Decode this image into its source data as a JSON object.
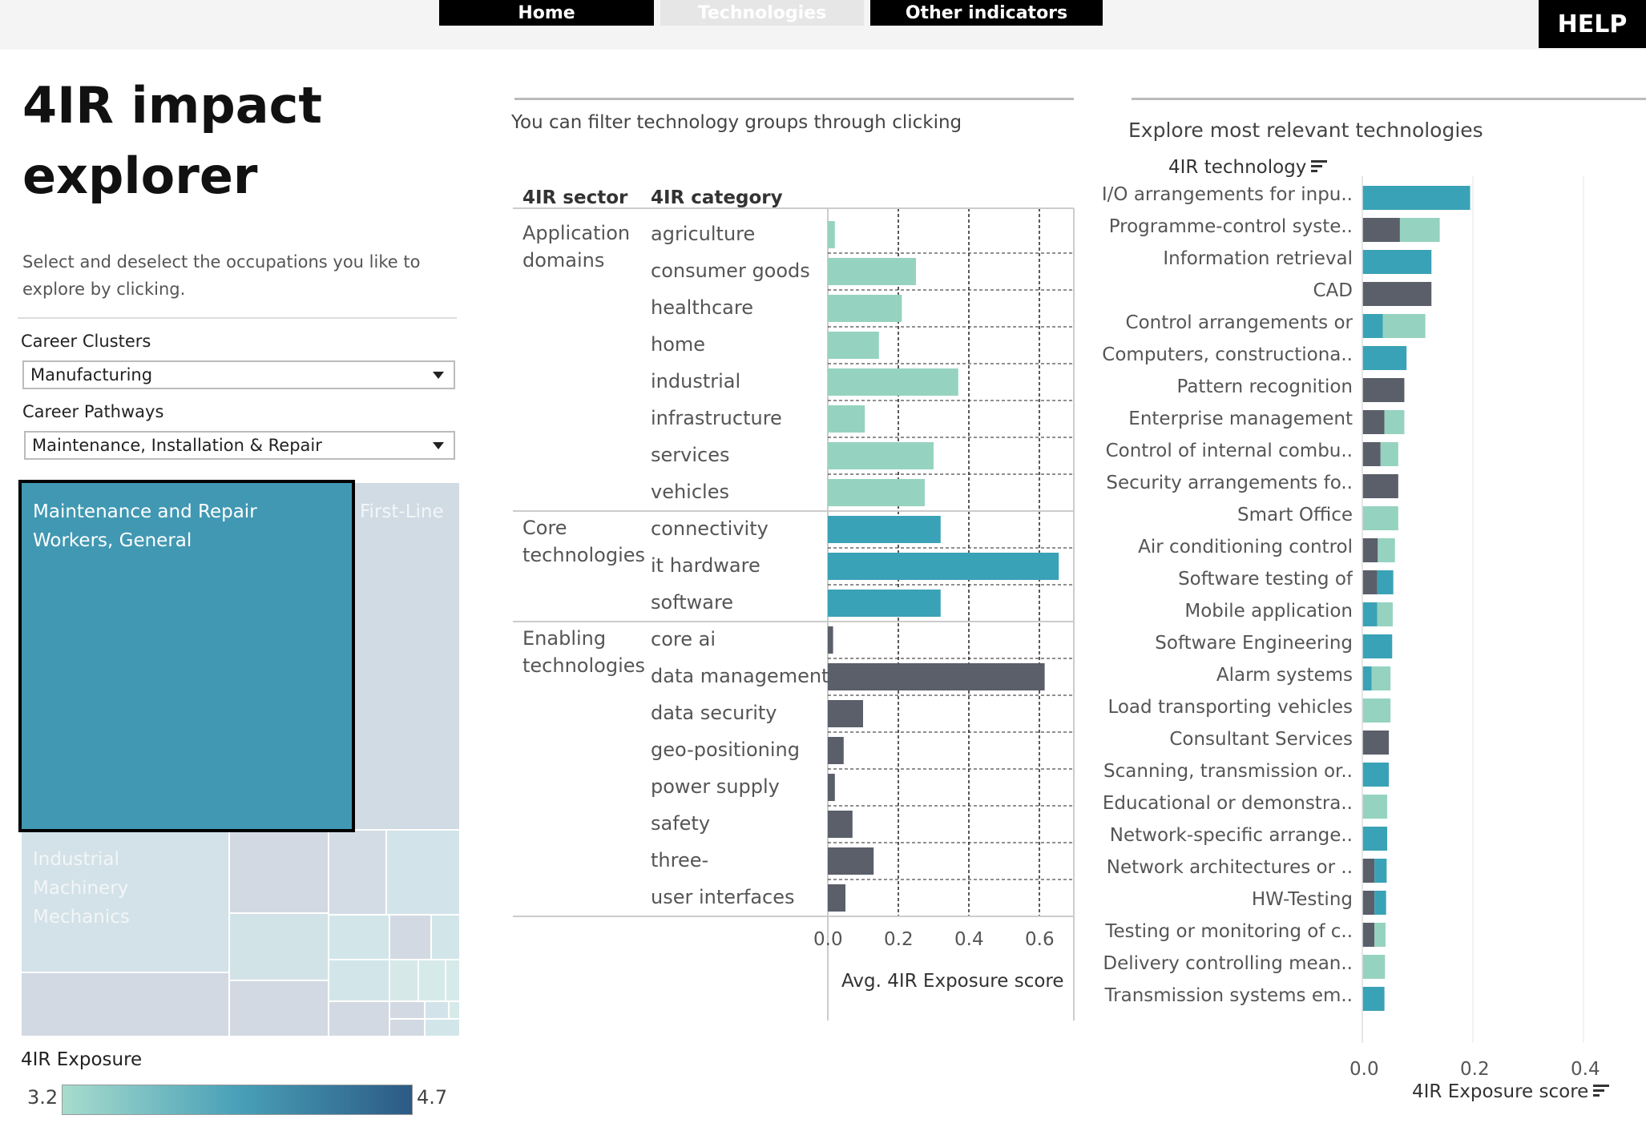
{
  "nav": {
    "home_label": "Home",
    "technologies_label": "Technologies",
    "other_label": "Other indicators",
    "help_label": "HELP"
  },
  "left": {
    "title_line1": "4IR impact",
    "title_line2": "explorer",
    "instructions": "Select and deselect the occupations you like to explore by clicking.",
    "career_clusters_label": "Career Clusters",
    "career_clusters_value": "Manufacturing",
    "career_pathways_label": "Career Pathways",
    "career_pathways_value": "Maintenance, Installation & Repair",
    "treemap": {
      "selected_label": "Maintenance and Repair Workers, General",
      "first_line_label": "First-Line",
      "industrial_label": "Industrial Machinery Mechanics"
    },
    "legend": {
      "title": "4IR Exposure",
      "min": "3.2",
      "max": "4.7"
    }
  },
  "middle": {
    "filter_hint": "You can filter technology groups through clicking",
    "col_sector": "4IR sector",
    "col_category": "4IR category",
    "x_label": "Avg. 4IR Exposure score",
    "colors": {
      "application": "#95d3c0",
      "core": "#3aa2b6",
      "enabling": "#5a5f6a"
    }
  },
  "right": {
    "title": "Explore most relevant technologies",
    "y_header": "4IR technology",
    "x_label": "4IR Exposure score"
  },
  "chart_data": [
    {
      "type": "bar",
      "orientation": "horizontal",
      "xlabel": "Avg. 4IR Exposure score",
      "xlim": [
        0,
        0.65
      ],
      "xticks": [
        "0.0",
        "0.2",
        "0.4",
        "0.6"
      ],
      "groups": [
        {
          "sector": "Application domains",
          "color": "#95d3c0",
          "rows": [
            {
              "category": "agriculture",
              "value": 0.02
            },
            {
              "category": "consumer goods",
              "value": 0.25
            },
            {
              "category": "healthcare",
              "value": 0.21
            },
            {
              "category": "home",
              "value": 0.145
            },
            {
              "category": "industrial",
              "value": 0.37
            },
            {
              "category": "infrastructure",
              "value": 0.105
            },
            {
              "category": "services",
              "value": 0.3
            },
            {
              "category": "vehicles",
              "value": 0.275
            }
          ]
        },
        {
          "sector": "Core technologies",
          "color": "#3aa2b6",
          "rows": [
            {
              "category": "connectivity",
              "value": 0.32
            },
            {
              "category": "it hardware",
              "value": 0.655
            },
            {
              "category": "software",
              "value": 0.32
            }
          ]
        },
        {
          "sector": "Enabling technologies",
          "color": "#5a5f6a",
          "rows": [
            {
              "category": "core ai",
              "value": 0.015
            },
            {
              "category": "data management",
              "value": 0.615
            },
            {
              "category": "data security",
              "value": 0.1
            },
            {
              "category": "geo-positioning",
              "value": 0.045
            },
            {
              "category": "power supply",
              "value": 0.02
            },
            {
              "category": "safety",
              "value": 0.07
            },
            {
              "category": "three-",
              "value": 0.13
            },
            {
              "category": "user interfaces",
              "value": 0.05
            }
          ]
        }
      ]
    },
    {
      "type": "bar",
      "orientation": "horizontal",
      "stacked": true,
      "xlabel": "4IR Exposure score",
      "xlim": [
        0,
        0.48
      ],
      "xticks": [
        "0.0",
        "0.2",
        "0.4"
      ],
      "series_colors": {
        "enabling": "#5a5f6a",
        "core": "#3aa2b6",
        "application": "#95d3c0"
      },
      "rows": [
        {
          "label": "I/O arrangements for inpu..",
          "enabling": 0,
          "core": 0.195,
          "application": 0
        },
        {
          "label": "Programme-control syste..",
          "enabling": 0.068,
          "core": 0,
          "application": 0.072
        },
        {
          "label": "Information retrieval",
          "enabling": 0,
          "core": 0.125,
          "application": 0
        },
        {
          "label": "CAD",
          "enabling": 0.125,
          "core": 0,
          "application": 0
        },
        {
          "label": "Control arrangements or",
          "enabling": 0,
          "core": 0.037,
          "application": 0.077
        },
        {
          "label": "Computers, constructiona..",
          "enabling": 0,
          "core": 0.08,
          "application": 0
        },
        {
          "label": "Pattern recognition",
          "enabling": 0.076,
          "core": 0,
          "application": 0
        },
        {
          "label": "Enterprise management",
          "enabling": 0.04,
          "core": 0,
          "application": 0.036
        },
        {
          "label": "Control of internal combu..",
          "enabling": 0.033,
          "core": 0,
          "application": 0.032
        },
        {
          "label": "Security arrangements fo..",
          "enabling": 0.065,
          "core": 0,
          "application": 0
        },
        {
          "label": "Smart Office",
          "enabling": 0,
          "core": 0,
          "application": 0.065
        },
        {
          "label": "Air conditioning control",
          "enabling": 0.028,
          "core": 0,
          "application": 0.031
        },
        {
          "label": "Software testing of",
          "enabling": 0.027,
          "core": 0.029,
          "application": 0
        },
        {
          "label": "Mobile application",
          "enabling": 0,
          "core": 0.027,
          "application": 0.028
        },
        {
          "label": "Software Engineering",
          "enabling": 0,
          "core": 0.054,
          "application": 0
        },
        {
          "label": "Alarm systems",
          "enabling": 0,
          "core": 0.017,
          "application": 0.034
        },
        {
          "label": "Load transporting vehicles",
          "enabling": 0,
          "core": 0,
          "application": 0.051
        },
        {
          "label": "Consultant Services",
          "enabling": 0.048,
          "core": 0,
          "application": 0
        },
        {
          "label": "Scanning, transmission or..",
          "enabling": 0,
          "core": 0.048,
          "application": 0
        },
        {
          "label": "Educational or demonstra..",
          "enabling": 0,
          "core": 0,
          "application": 0.045
        },
        {
          "label": "Network-specific arrange..",
          "enabling": 0,
          "core": 0.045,
          "application": 0
        },
        {
          "label": "Network architectures or ..",
          "enabling": 0.022,
          "core": 0.022,
          "application": 0
        },
        {
          "label": "HW-Testing",
          "enabling": 0.022,
          "core": 0.021,
          "application": 0
        },
        {
          "label": "Testing or monitoring of c..",
          "enabling": 0.022,
          "core": 0,
          "application": 0.02
        },
        {
          "label": "Delivery controlling mean..",
          "enabling": 0,
          "core": 0,
          "application": 0.041
        },
        {
          "label": "Transmission systems em..",
          "enabling": 0,
          "core": 0.04,
          "application": 0
        }
      ]
    }
  ]
}
